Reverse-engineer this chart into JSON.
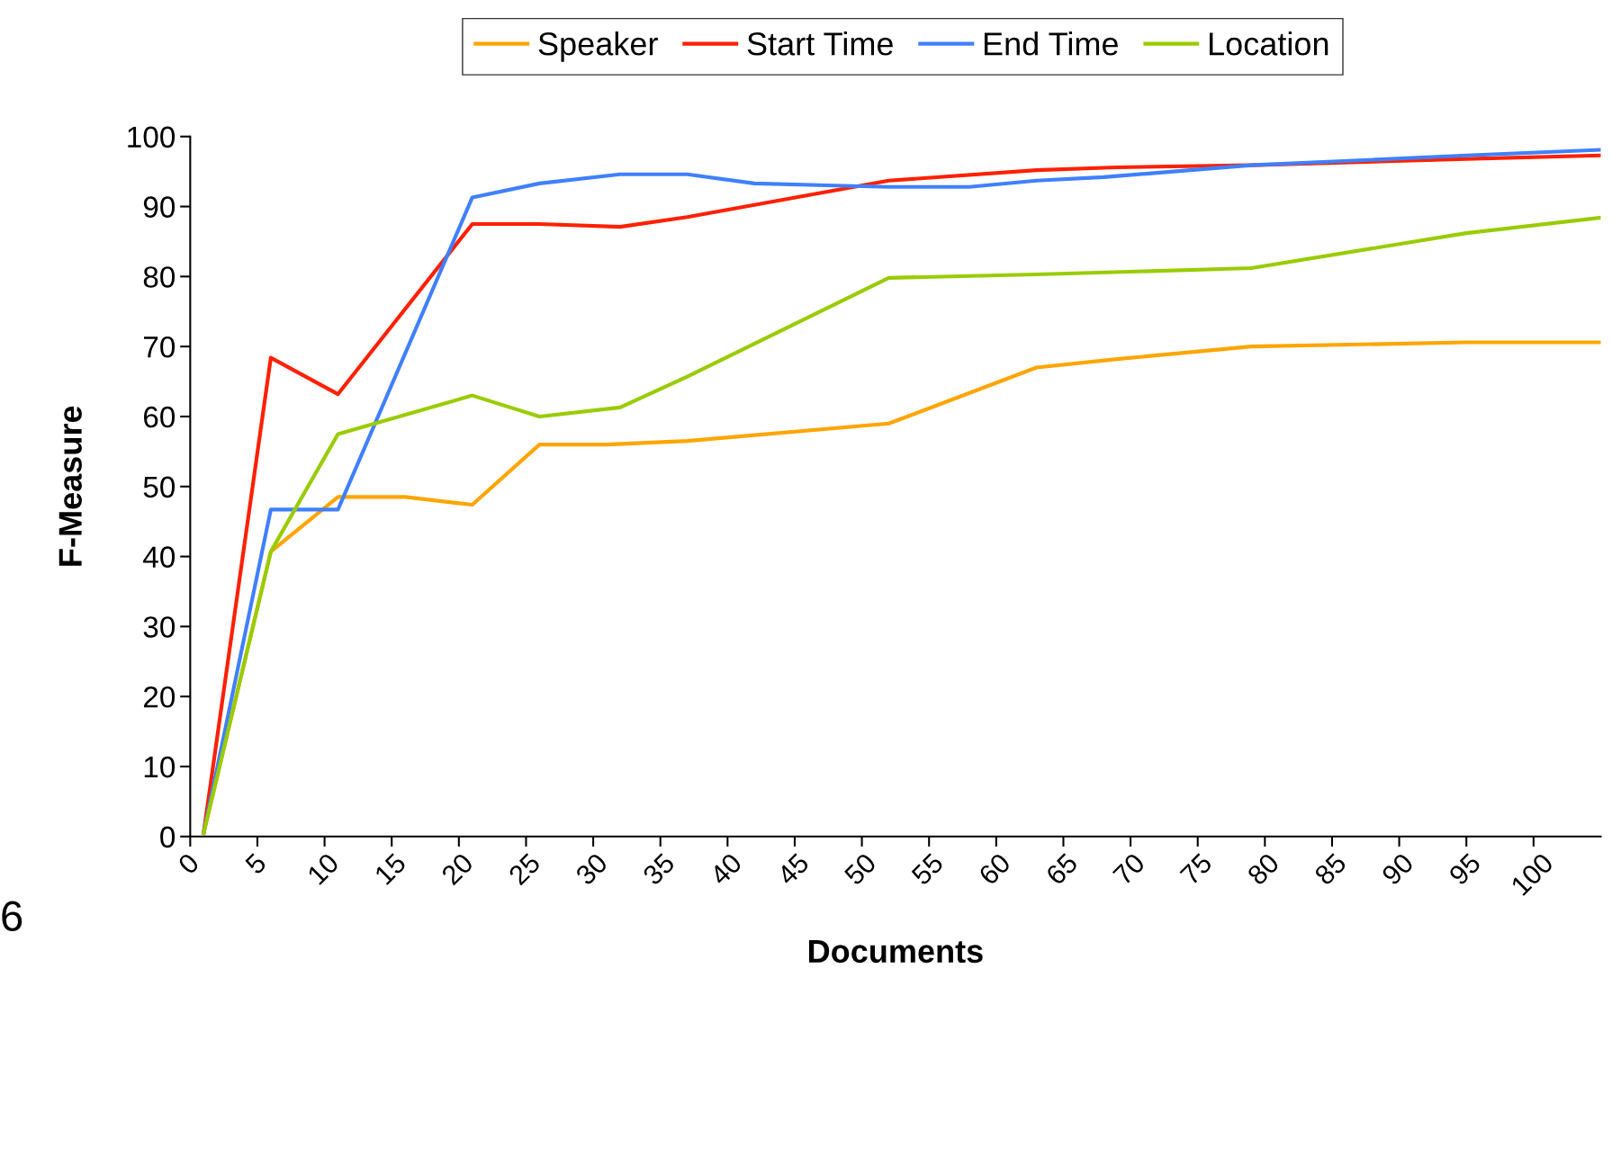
{
  "chart_data": {
    "type": "line",
    "xlabel": "Documents",
    "ylabel": "F-Measure",
    "series": [
      {
        "name": "Speaker",
        "color": "#ffa500",
        "x": [
          1,
          6,
          11,
          16,
          21,
          26,
          31,
          37,
          52,
          63,
          69,
          79,
          95,
          105
        ],
        "values": [
          0.5,
          40.7,
          48.5,
          48.5,
          47.4,
          56,
          56,
          56.5,
          59,
          67,
          68.2,
          70,
          70.6,
          70.6
        ]
      },
      {
        "name": "Start Time",
        "color": "#ff2000",
        "x": [
          1,
          6,
          11,
          21,
          26,
          32,
          37,
          52,
          63,
          69,
          79,
          95,
          105
        ],
        "values": [
          0.5,
          68.4,
          63.2,
          87.5,
          87.5,
          87.1,
          88.5,
          93.7,
          95.2,
          95.6,
          95.9,
          96.8,
          97.3
        ]
      },
      {
        "name": "End Time",
        "color": "#4080ff",
        "x": [
          1,
          6,
          11,
          21,
          26,
          32,
          37,
          42,
          48,
          52,
          58,
          63,
          68,
          79,
          95,
          105
        ],
        "values": [
          0.5,
          46.7,
          46.7,
          91.3,
          93.3,
          94.6,
          94.6,
          93.3,
          93,
          92.8,
          92.8,
          93.7,
          94.2,
          95.9,
          97.3,
          98.1
        ]
      },
      {
        "name": "Location",
        "color": "#99cc00",
        "x": [
          1,
          6,
          11,
          21,
          26,
          32,
          37,
          52,
          63,
          79,
          95,
          105
        ],
        "values": [
          0.5,
          40.7,
          57.5,
          63,
          60,
          61.3,
          65.7,
          79.8,
          80.3,
          81.2,
          86.2,
          88.4
        ]
      }
    ],
    "xlim": [
      0,
      105
    ],
    "xticks": [
      0,
      5,
      10,
      15,
      20,
      25,
      30,
      35,
      40,
      45,
      50,
      55,
      60,
      65,
      70,
      75,
      80,
      85,
      90,
      95,
      100
    ],
    "ylim": [
      0,
      100
    ],
    "yticks": [
      0,
      10,
      20,
      30,
      40,
      50,
      60,
      70,
      80,
      90,
      100
    ],
    "grid": false,
    "legend": "top",
    "marker": "none",
    "line_style": "solid",
    "annotations": [
      "6"
    ]
  }
}
